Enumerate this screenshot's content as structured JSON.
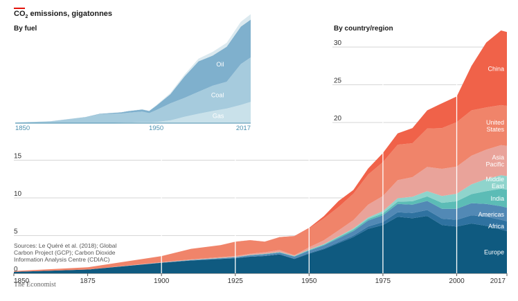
{
  "header": {
    "title_prefix": "CO",
    "title_sub": "2",
    "title_suffix": " emissions, gigatonnes",
    "by_fuel": "By fuel",
    "by_region": "By country/region"
  },
  "source_note": [
    "Sources: Le Quéré et al. (2018); Global",
    "Carbon Project (GCP); Carbon Dioxide",
    "Information Analysis Centre (CDIAC)"
  ],
  "brand": "The Economist",
  "colors": {
    "Europe": "#0f5a80",
    "Africa": "#2f72a0",
    "Americas": "#5289b5",
    "India": "#5cbcb6",
    "Middle East": "#8fd4cc",
    "Asia Pacific": "#e9a39a",
    "United States": "#f0846a",
    "China": "#f06249",
    "Gas": "#c9e1ea",
    "Coal": "#a6cbdd",
    "Oil": "#7fb0cd",
    "Other": "#dbe9ef"
  },
  "chart_data": [
    {
      "type": "area",
      "title": "By country/region",
      "stacked": true,
      "x": [
        1850,
        1875,
        1900,
        1910,
        1920,
        1925,
        1930,
        1935,
        1940,
        1945,
        1950,
        1955,
        1960,
        1965,
        1970,
        1975,
        1980,
        1985,
        1990,
        1995,
        2000,
        2005,
        2010,
        2015,
        2017
      ],
      "ylim": [
        0,
        36
      ],
      "xlim": [
        1850,
        2017
      ],
      "yticks": [
        0,
        5,
        10,
        15,
        20,
        25,
        30
      ],
      "xticks": [
        1850,
        1875,
        1900,
        1925,
        1950,
        1975,
        2000,
        2017
      ],
      "series": [
        {
          "name": "Europe",
          "values": [
            0.2,
            0.5,
            1.4,
            1.7,
            1.9,
            2.0,
            2.2,
            2.3,
            2.5,
            1.9,
            2.6,
            3.2,
            4.0,
            4.8,
            5.9,
            6.4,
            7.5,
            7.3,
            7.6,
            6.4,
            6.2,
            6.6,
            6.3,
            5.8,
            5.6
          ]
        },
        {
          "name": "Africa",
          "values": [
            0,
            0,
            0,
            0.01,
            0.02,
            0.03,
            0.03,
            0.04,
            0.05,
            0.06,
            0.1,
            0.1,
            0.15,
            0.2,
            0.3,
            0.4,
            0.6,
            0.7,
            0.8,
            0.85,
            0.9,
            1.1,
            1.2,
            1.3,
            1.3
          ]
        },
        {
          "name": "Americas",
          "values": [
            0,
            0,
            0.02,
            0.05,
            0.08,
            0.1,
            0.15,
            0.18,
            0.2,
            0.25,
            0.3,
            0.4,
            0.5,
            0.6,
            0.8,
            0.9,
            1.1,
            1.1,
            1.2,
            1.3,
            1.45,
            1.6,
            1.7,
            1.8,
            1.8
          ]
        },
        {
          "name": "India",
          "values": [
            0,
            0,
            0.01,
            0.02,
            0.03,
            0.03,
            0.04,
            0.05,
            0.05,
            0.06,
            0.1,
            0.1,
            0.15,
            0.2,
            0.2,
            0.25,
            0.3,
            0.45,
            0.6,
            0.8,
            1.0,
            1.2,
            1.7,
            2.3,
            2.4
          ]
        },
        {
          "name": "Middle East",
          "values": [
            0,
            0,
            0,
            0,
            0.01,
            0.01,
            0.02,
            0.02,
            0.03,
            0.03,
            0.05,
            0.08,
            0.1,
            0.15,
            0.2,
            0.3,
            0.45,
            0.6,
            0.7,
            0.9,
            1.0,
            1.3,
            1.6,
            1.8,
            1.8
          ]
        },
        {
          "name": "Asia Pacific",
          "values": [
            0,
            0,
            0.05,
            0.07,
            0.1,
            0.12,
            0.15,
            0.2,
            0.25,
            0.1,
            0.3,
            0.5,
            0.8,
            1.1,
            1.7,
            2.0,
            2.4,
            2.6,
            3.2,
            3.6,
            3.6,
            3.8,
            3.9,
            4.0,
            4.0
          ]
        },
        {
          "name": "United States",
          "values": [
            0.1,
            0.3,
            0.8,
            1.4,
            1.6,
            1.9,
            1.8,
            1.4,
            1.7,
            2.5,
            2.5,
            2.9,
            3.1,
            3.5,
            4.0,
            4.5,
            4.7,
            4.5,
            5.1,
            5.4,
            5.9,
            6.0,
            5.6,
            5.3,
            5.3
          ]
        },
        {
          "name": "China",
          "values": [
            0,
            0,
            0,
            0,
            0,
            0.01,
            0.01,
            0.02,
            0.03,
            0.04,
            0.08,
            0.3,
            0.8,
            0.5,
            0.8,
            1.2,
            1.5,
            2.0,
            2.4,
            3.3,
            3.4,
            5.9,
            8.6,
            9.9,
            9.8
          ]
        }
      ]
    },
    {
      "type": "area",
      "title": "By fuel",
      "stacked": true,
      "x": [
        1850,
        1875,
        1900,
        1910,
        1920,
        1925,
        1930,
        1940,
        1945,
        1950,
        1960,
        1970,
        1980,
        1990,
        2000,
        2010,
        2017
      ],
      "xticks": [
        1850,
        1950,
        2017
      ],
      "xlim": [
        1850,
        2017
      ],
      "ylim": [
        0,
        36
      ],
      "series": [
        {
          "name": "Gas",
          "values": [
            0,
            0,
            0.02,
            0.05,
            0.1,
            0.15,
            0.2,
            0.3,
            0.3,
            0.4,
            0.9,
            2.1,
            3.1,
            4.0,
            4.8,
            6.0,
            7.0
          ]
        },
        {
          "name": "Coal",
          "values": [
            0.2,
            0.6,
            1.9,
            2.9,
            3.0,
            3.0,
            3.2,
            3.5,
            3.0,
            3.9,
            5.6,
            6.2,
            7.2,
            8.3,
            8.8,
            13.4,
            14.6
          ]
        },
        {
          "name": "Oil",
          "values": [
            0,
            0.02,
            0.1,
            0.15,
            0.3,
            0.4,
            0.55,
            0.7,
            0.7,
            1.4,
            3.0,
            7.0,
            10.0,
            9.9,
            11.5,
            12.3,
            12.4
          ]
        },
        {
          "name": "",
          "values": [
            0,
            0,
            0.05,
            0.05,
            0.05,
            0.05,
            0.05,
            0.08,
            0.1,
            0.2,
            0.4,
            0.6,
            0.9,
            1.2,
            1.3,
            1.6,
            1.8
          ]
        }
      ]
    }
  ]
}
